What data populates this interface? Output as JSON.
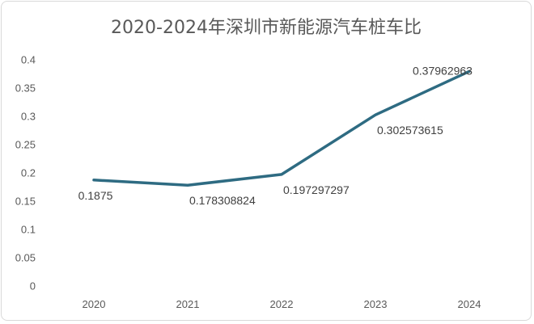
{
  "chart_data": {
    "type": "line",
    "title": "2020-2024年深圳市新能源汽车桩车比",
    "categories": [
      "2020",
      "2021",
      "2022",
      "2023",
      "2024"
    ],
    "values": [
      0.1875,
      0.178308824,
      0.197297297,
      0.302573615,
      0.37962963
    ],
    "data_labels": [
      "0.1875",
      "0.178308824",
      "0.197297297",
      "0.302573615",
      "0.37962963"
    ],
    "y_ticks": [
      "0",
      "0.05",
      "0.1",
      "0.15",
      "0.2",
      "0.25",
      "0.3",
      "0.35",
      "0.4"
    ],
    "ylim": [
      0,
      0.4
    ],
    "xlabel": "",
    "ylabel": "",
    "grid": false,
    "legend": "none",
    "line_color": "#2e6b82"
  }
}
